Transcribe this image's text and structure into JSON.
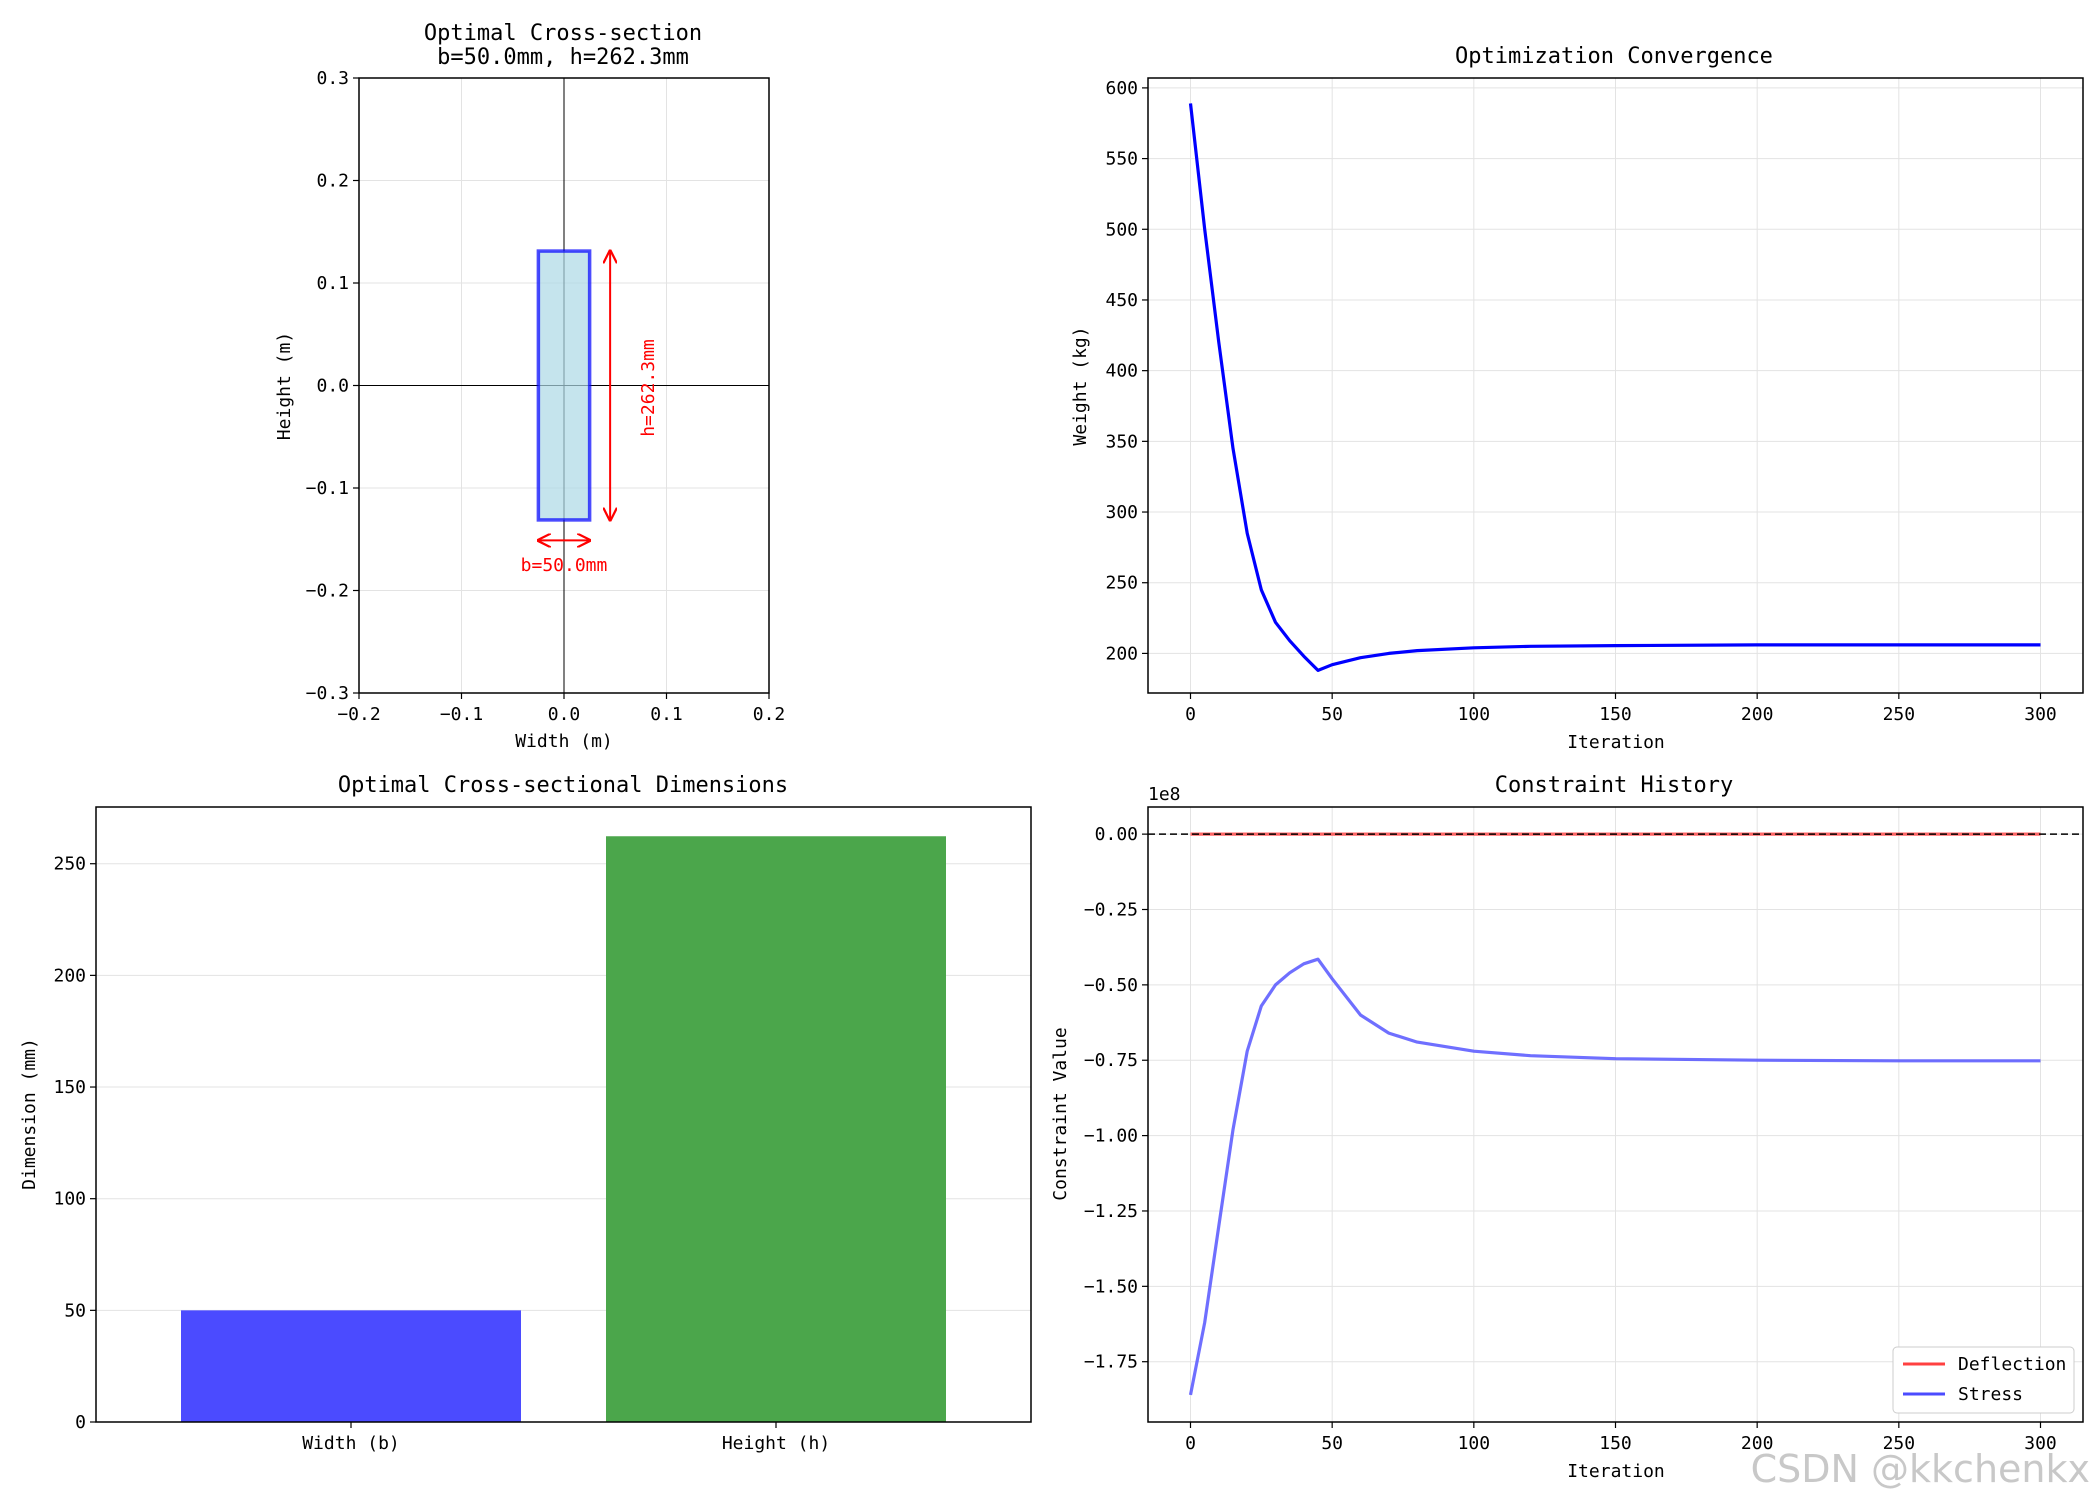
{
  "chart_data": [
    {
      "id": "cross_section",
      "type": "shape",
      "title_line1": "Optimal Cross-section",
      "title_line2": "b=50.0mm, h=262.3mm",
      "xlabel": "Width (m)",
      "ylabel": "Height (m)",
      "xlim": [
        -0.2,
        0.2
      ],
      "ylim": [
        -0.3,
        0.3
      ],
      "xticks": [
        -0.2,
        -0.1,
        0.0,
        0.1,
        0.2
      ],
      "yticks": [
        -0.3,
        -0.2,
        -0.1,
        0.0,
        0.1,
        0.2,
        0.3
      ],
      "xtick_labels": [
        "−0.2",
        "−0.1",
        "0.0",
        "0.1",
        "0.2"
      ],
      "ytick_labels": [
        "−0.3",
        "−0.2",
        "−0.1",
        "0.0",
        "0.1",
        "0.2",
        "0.3"
      ],
      "rect": {
        "b": 0.05,
        "h": 0.2623,
        "fill": "#add8e6",
        "edge": "#0000ff"
      },
      "width_annotation": "b=50.0mm",
      "height_annotation": "h=262.3mm",
      "annotation_color": "#ff0000"
    },
    {
      "id": "convergence",
      "type": "line",
      "title": "Optimization Convergence",
      "xlabel": "Iteration",
      "ylabel": "Weight (kg)",
      "xlim": [
        -15,
        315
      ],
      "ylim": [
        172,
        607
      ],
      "xticks": [
        0,
        50,
        100,
        150,
        200,
        250,
        300
      ],
      "yticks": [
        200,
        250,
        300,
        350,
        400,
        450,
        500,
        550,
        600
      ],
      "series": [
        {
          "name": "Weight",
          "color": "#0000ff",
          "x": [
            0,
            5,
            10,
            15,
            20,
            25,
            30,
            35,
            40,
            45,
            50,
            60,
            70,
            80,
            100,
            120,
            150,
            200,
            250,
            300
          ],
          "y": [
            589,
            500,
            420,
            345,
            285,
            245,
            222,
            209,
            198,
            188,
            192,
            197,
            200,
            202,
            204,
            205,
            205.5,
            206,
            206,
            206
          ]
        }
      ]
    },
    {
      "id": "dimensions",
      "type": "bar",
      "title": "Optimal Cross-sectional Dimensions",
      "ylabel": "Dimension (mm)",
      "categories": [
        "Width (b)",
        "Height (h)"
      ],
      "values": [
        50.0,
        262.3
      ],
      "colors": [
        "#4b4bff",
        "#4ba64b"
      ],
      "ylim": [
        0,
        275.4
      ],
      "yticks": [
        0,
        50,
        100,
        150,
        200,
        250
      ]
    },
    {
      "id": "constraints",
      "type": "line",
      "title": "Constraint History",
      "xlabel": "Iteration",
      "ylabel": "Constraint Value",
      "offset_label": "1e8",
      "xlim": [
        -15,
        315
      ],
      "ylim": [
        -1.95,
        0.09
      ],
      "xticks": [
        0,
        50,
        100,
        150,
        200,
        250,
        300
      ],
      "yticks": [
        0.0,
        -0.25,
        -0.5,
        -0.75,
        -1.0,
        -1.25,
        -1.5,
        -1.75
      ],
      "ytick_labels": [
        "0.00",
        "−0.25",
        "−0.50",
        "−0.75",
        "−1.00",
        "−1.25",
        "−1.50",
        "−1.75"
      ],
      "zero_line": true,
      "series": [
        {
          "name": "Deflection",
          "color": "#ff4040",
          "x": [
            0,
            300
          ],
          "y": [
            0.0,
            0.0
          ]
        },
        {
          "name": "Stress",
          "color": "#4b4bff",
          "x": [
            0,
            5,
            10,
            15,
            20,
            25,
            30,
            35,
            40,
            45,
            50,
            60,
            70,
            80,
            100,
            120,
            150,
            200,
            250,
            300
          ],
          "y": [
            -1.86,
            -1.62,
            -1.3,
            -0.98,
            -0.72,
            -0.57,
            -0.5,
            -0.46,
            -0.43,
            -0.415,
            -0.48,
            -0.6,
            -0.66,
            -0.69,
            -0.72,
            -0.735,
            -0.745,
            -0.75,
            -0.752,
            -0.752
          ]
        }
      ],
      "legend_position": "lower-right"
    }
  ],
  "watermark": "CSDN @kkchenkx"
}
